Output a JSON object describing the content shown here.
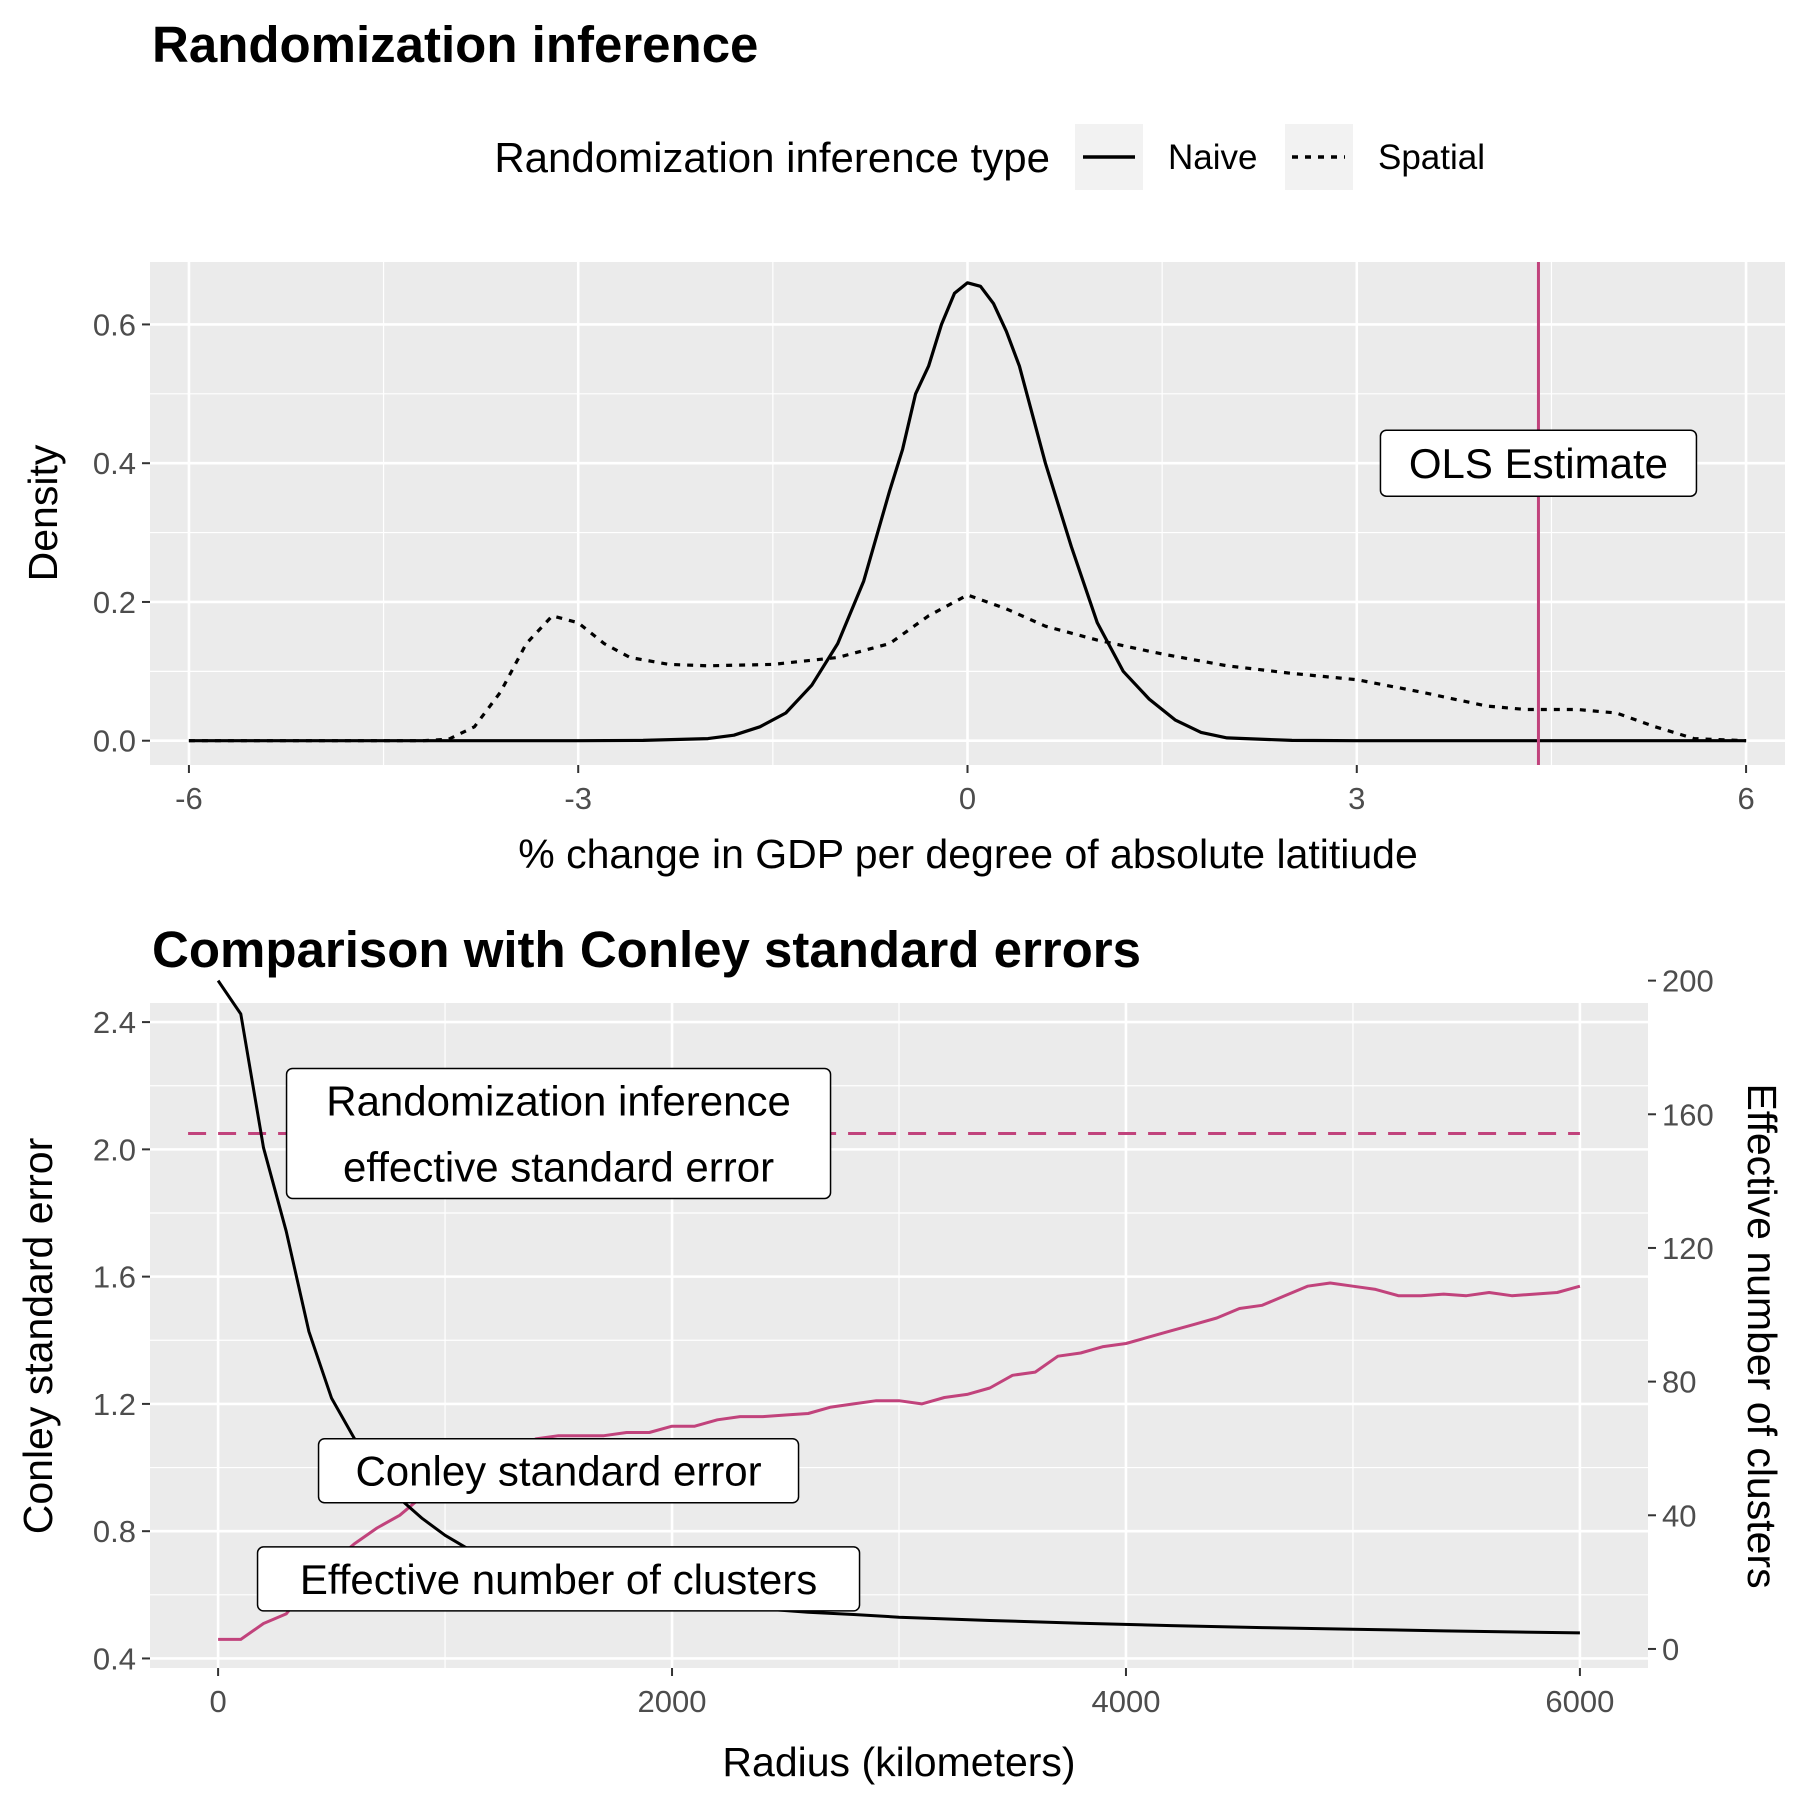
{
  "chart_data": [
    {
      "type": "line",
      "title": "Randomization inference",
      "xlabel": "% change in GDP per degree of absolute latitiude",
      "ylabel": "Density",
      "xlim": [
        -6.3,
        6.3
      ],
      "ylim": [
        -0.035,
        0.69
      ],
      "x_ticks": [
        "-6",
        "-3",
        "0",
        "3",
        "6"
      ],
      "x_tick_values": [
        -6,
        -3,
        0,
        3,
        6
      ],
      "y_ticks": [
        "0.0",
        "0.2",
        "0.4",
        "0.6"
      ],
      "y_tick_values": [
        0,
        0.2,
        0.4,
        0.6
      ],
      "grid": true,
      "legend": {
        "title": "Randomization inference type",
        "placement": "top",
        "entries": [
          {
            "label": "Naive",
            "linetype": "solid"
          },
          {
            "label": "Spatial",
            "linetype": "dotted"
          }
        ]
      },
      "series": [
        {
          "name": "Naive",
          "color": "#000000",
          "linetype": "solid",
          "points": [
            [
              -6,
              0
            ],
            [
              -3,
              0
            ],
            [
              -2.5,
              0.0005
            ],
            [
              -2,
              0.003
            ],
            [
              -1.8,
              0.008
            ],
            [
              -1.6,
              0.02
            ],
            [
              -1.4,
              0.04
            ],
            [
              -1.2,
              0.08
            ],
            [
              -1.0,
              0.14
            ],
            [
              -0.8,
              0.23
            ],
            [
              -0.6,
              0.36
            ],
            [
              -0.5,
              0.42
            ],
            [
              -0.4,
              0.5
            ],
            [
              -0.3,
              0.54
            ],
            [
              -0.2,
              0.6
            ],
            [
              -0.1,
              0.645
            ],
            [
              0,
              0.66
            ],
            [
              0.1,
              0.655
            ],
            [
              0.2,
              0.63
            ],
            [
              0.3,
              0.59
            ],
            [
              0.4,
              0.54
            ],
            [
              0.5,
              0.47
            ],
            [
              0.6,
              0.4
            ],
            [
              0.8,
              0.28
            ],
            [
              1.0,
              0.17
            ],
            [
              1.2,
              0.1
            ],
            [
              1.4,
              0.06
            ],
            [
              1.6,
              0.03
            ],
            [
              1.8,
              0.012
            ],
            [
              2.0,
              0.004
            ],
            [
              2.5,
              0.0005
            ],
            [
              3,
              0
            ],
            [
              6,
              0
            ]
          ]
        },
        {
          "name": "Spatial",
          "color": "#000000",
          "linetype": "dotted",
          "points": [
            [
              -6,
              0
            ],
            [
              -4.2,
              0
            ],
            [
              -4.0,
              0.002
            ],
            [
              -3.8,
              0.02
            ],
            [
              -3.6,
              0.07
            ],
            [
              -3.4,
              0.14
            ],
            [
              -3.2,
              0.18
            ],
            [
              -3.0,
              0.17
            ],
            [
              -2.8,
              0.14
            ],
            [
              -2.6,
              0.12
            ],
            [
              -2.3,
              0.11
            ],
            [
              -2.0,
              0.108
            ],
            [
              -1.5,
              0.11
            ],
            [
              -1.0,
              0.12
            ],
            [
              -0.6,
              0.14
            ],
            [
              -0.3,
              0.18
            ],
            [
              0,
              0.21
            ],
            [
              0.3,
              0.19
            ],
            [
              0.6,
              0.165
            ],
            [
              1.0,
              0.145
            ],
            [
              1.5,
              0.125
            ],
            [
              2.0,
              0.108
            ],
            [
              2.5,
              0.097
            ],
            [
              3.0,
              0.088
            ],
            [
              3.5,
              0.07
            ],
            [
              4.0,
              0.05
            ],
            [
              4.3,
              0.045
            ],
            [
              4.7,
              0.045
            ],
            [
              5.0,
              0.04
            ],
            [
              5.3,
              0.02
            ],
            [
              5.6,
              0.003
            ],
            [
              6,
              0
            ]
          ]
        }
      ],
      "annotations": [
        {
          "type": "vline",
          "x": 4.4,
          "color": "#c1437c"
        },
        {
          "type": "label",
          "text": "OLS Estimate",
          "x": 4.4,
          "y": 0.4
        }
      ]
    },
    {
      "type": "line",
      "title": "Comparison with Conley standard errors",
      "xlabel": "Radius (kilometers)",
      "ylabel": "Conley standard error",
      "ylabel_right": "Effective number of clusters",
      "xlim": [
        -300,
        6300
      ],
      "ylim": [
        0.37,
        2.46
      ],
      "ylim_right": [
        -5.7,
        193.3
      ],
      "x_ticks": [
        "0",
        "2000",
        "4000",
        "6000"
      ],
      "x_tick_values": [
        0,
        2000,
        4000,
        6000
      ],
      "y_ticks": [
        "0.4",
        "0.8",
        "1.2",
        "1.6",
        "2.0",
        "2.4"
      ],
      "y_tick_values": [
        0.4,
        0.8,
        1.2,
        1.6,
        2.0,
        2.4
      ],
      "y_ticks_right": [
        "0",
        "40",
        "80",
        "120",
        "160",
        "200"
      ],
      "y_tick_values_right": [
        0,
        40,
        80,
        120,
        160,
        200
      ],
      "grid": true,
      "series": [
        {
          "name": "Conley standard error",
          "color": "#c1437c",
          "linetype": "solid",
          "x": [
            0,
            100,
            200,
            300,
            400,
            500,
            600,
            700,
            800,
            900,
            1000,
            1100,
            1200,
            1300,
            1400,
            1500,
            1600,
            1700,
            1800,
            1900,
            2000,
            2100,
            2200,
            2300,
            2400,
            2500,
            2600,
            2700,
            2800,
            2900,
            3000,
            3100,
            3200,
            3300,
            3400,
            3500,
            3600,
            3700,
            3800,
            3900,
            4000,
            4100,
            4200,
            4300,
            4400,
            4500,
            4600,
            4700,
            4800,
            4900,
            5000,
            5100,
            5200,
            5300,
            5400,
            5500,
            5600,
            5700,
            5800,
            5900,
            6000
          ],
          "y": [
            0.46,
            0.46,
            0.51,
            0.54,
            0.63,
            0.7,
            0.76,
            0.81,
            0.85,
            0.91,
            0.97,
            0.99,
            1.03,
            1.04,
            1.09,
            1.1,
            1.1,
            1.1,
            1.11,
            1.11,
            1.13,
            1.13,
            1.15,
            1.16,
            1.16,
            1.165,
            1.17,
            1.19,
            1.2,
            1.21,
            1.21,
            1.2,
            1.22,
            1.23,
            1.25,
            1.29,
            1.3,
            1.35,
            1.36,
            1.38,
            1.39,
            1.41,
            1.43,
            1.45,
            1.47,
            1.5,
            1.51,
            1.54,
            1.57,
            1.58,
            1.57,
            1.56,
            1.54,
            1.54,
            1.545,
            1.54,
            1.55,
            1.54,
            1.545,
            1.55,
            1.57
          ]
        },
        {
          "name": "Effective number of clusters",
          "color": "#000000",
          "linetype": "solid",
          "axis": "right",
          "x": [
            0,
            100,
            200,
            300,
            400,
            500,
            600,
            700,
            800,
            900,
            1000,
            1100,
            1200,
            1300,
            1400,
            1500,
            1600,
            1700,
            1800,
            1900,
            2000,
            2200,
            2400,
            2600,
            2800,
            3000,
            3400,
            3800,
            4200,
            4600,
            5000,
            5400,
            6000
          ],
          "y": [
            200,
            190,
            150,
            125,
            95,
            75,
            63,
            53,
            45,
            39,
            34,
            30,
            27,
            24.5,
            22.5,
            20.5,
            19,
            17.5,
            16.5,
            15.5,
            14.5,
            13,
            12,
            11,
            10.3,
            9.5,
            8.5,
            7.7,
            7,
            6.4,
            5.9,
            5.4,
            4.8
          ]
        }
      ],
      "annotations": [
        {
          "type": "hline",
          "y": 2.05,
          "color": "#c1437c",
          "linetype": "dashed"
        },
        {
          "type": "label",
          "lines": [
            "Randomization inference",
            "effective standard error"
          ],
          "x": 1500,
          "y": 2.05
        },
        {
          "type": "label",
          "text": "Conley standard error",
          "x": 1500,
          "y": 0.99
        },
        {
          "type": "label",
          "text": "Effective number of clusters",
          "x": 1500,
          "y": 0.65
        }
      ]
    }
  ]
}
